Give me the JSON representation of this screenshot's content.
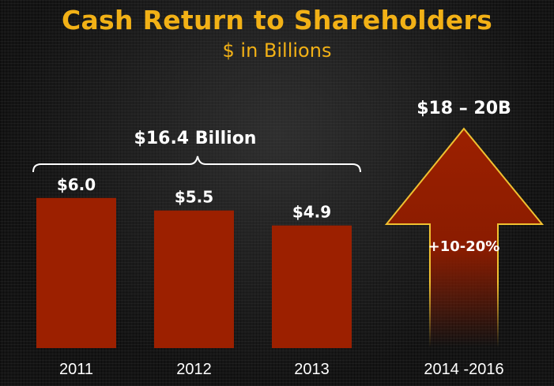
{
  "title": "Cash Return to Shareholders",
  "subtitle": "$ in Billions",
  "colors": {
    "title": "#f2b116",
    "bar": "#9c2000",
    "arrow_outline": "#f0c030",
    "text": "#ffffff"
  },
  "chart_data": {
    "type": "bar",
    "categories": [
      "2011",
      "2012",
      "2013"
    ],
    "values": [
      6.0,
      5.5,
      4.9
    ],
    "value_labels": [
      "$6.0",
      "$5.5",
      "$4.9"
    ],
    "bracket_label": "$16.4 Billion",
    "projection": {
      "category": "2014 -2016",
      "label": "$18 – 20B",
      "growth_label": "+10-20%"
    },
    "title": "Cash Return to Shareholders",
    "xlabel": "",
    "ylabel": "",
    "grid": false
  }
}
